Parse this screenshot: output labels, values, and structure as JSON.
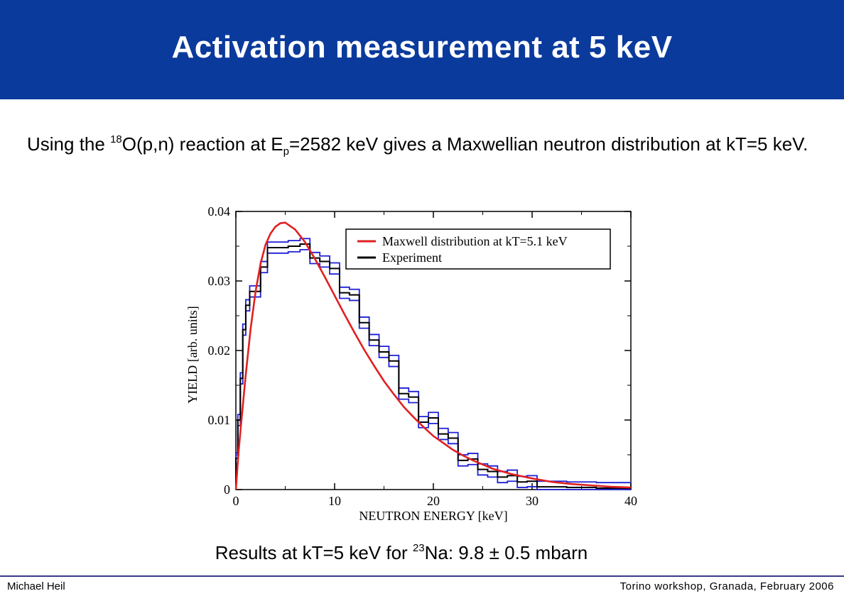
{
  "slide": {
    "title": "Activation measurement at 5 keV",
    "intro": {
      "p1": "Using the ",
      "sup1": "18",
      "p2": "O(p,n) reaction at E",
      "sub1": "p",
      "p3": "=2582 keV gives a Maxwellian neutron distribution at kT=5 keV."
    },
    "result": {
      "p1": "Results at kT=5 keV for ",
      "sup1": "23",
      "p2": "Na: 9.8 ± 0.5 mbarn"
    },
    "footer": {
      "author": "Michael Heil",
      "event": "Torino workshop, Granada,  February 2006"
    },
    "colors": {
      "header_bg": "#0a3a9c",
      "maxwell": "#e02020",
      "experiment": "#000000",
      "error_band": "#1f1fd6"
    }
  },
  "chart_data": {
    "type": "line",
    "xlabel": "NEUTRON ENERGY [keV]",
    "ylabel": "YIELD [arb. units]",
    "xlim": [
      0,
      40
    ],
    "ylim": [
      0,
      0.04
    ],
    "xticks": [
      0,
      10,
      20,
      30,
      40
    ],
    "xtick_labels": [
      "0",
      "10",
      "20",
      "30",
      "40"
    ],
    "yticks": [
      0,
      0.01,
      0.02,
      0.03,
      0.04
    ],
    "ytick_labels": [
      "0",
      "0.01",
      "0.02",
      "0.03",
      "0.04"
    ],
    "grid": false,
    "legend_position": "top-right",
    "series": [
      {
        "name": "Maxwell distribution at kT=5.1 keV",
        "style": "smooth-line",
        "x": [
          0,
          0.25,
          0.5,
          1,
          1.5,
          2,
          2.5,
          3,
          3.5,
          4,
          4.5,
          5,
          6,
          7,
          8,
          9,
          10,
          11,
          12,
          13,
          14,
          15,
          16,
          17,
          18,
          19,
          20,
          21,
          22,
          23,
          24,
          25,
          26,
          27,
          28,
          29,
          30,
          32,
          34,
          36,
          38,
          40
        ],
        "y": [
          0.0,
          0.005,
          0.009,
          0.0165,
          0.0232,
          0.0285,
          0.0325,
          0.0352,
          0.0368,
          0.0378,
          0.0383,
          0.0384,
          0.0374,
          0.0356,
          0.0332,
          0.0306,
          0.0279,
          0.0252,
          0.0226,
          0.0201,
          0.0178,
          0.0156,
          0.0137,
          0.0119,
          0.0104,
          0.009,
          0.0077,
          0.0067,
          0.0057,
          0.0049,
          0.0042,
          0.0036,
          0.003,
          0.0026,
          0.0022,
          0.0019,
          0.0016,
          0.0011,
          0.0008,
          0.0006,
          0.0004,
          0.0003
        ]
      },
      {
        "name": "Experiment",
        "style": "step",
        "bin_edges": [
          0,
          0.2,
          0.45,
          0.7,
          1.0,
          1.4,
          1.9,
          2.5,
          3.2,
          4.2,
          5.3,
          6.5,
          7.5,
          8.5,
          9.5,
          10.5,
          11.5,
          12.5,
          13.5,
          14.5,
          15.5,
          16.5,
          17.5,
          18.5,
          19.5,
          20.5,
          21.5,
          22.5,
          23.5,
          24.5,
          25.5,
          26.5,
          27.5,
          28.5,
          29.5,
          30.5,
          32,
          33.5,
          35,
          36.5,
          38,
          40
        ],
        "values": [
          0.0045,
          0.01,
          0.016,
          0.023,
          0.0265,
          0.0285,
          0.0285,
          0.032,
          0.0348,
          0.0348,
          0.035,
          0.0353,
          0.0333,
          0.0328,
          0.0318,
          0.0283,
          0.028,
          0.024,
          0.0215,
          0.0198,
          0.0185,
          0.0138,
          0.0133,
          0.0097,
          0.0103,
          0.008,
          0.0074,
          0.0042,
          0.0044,
          0.0029,
          0.0026,
          0.0018,
          0.002,
          0.0011,
          0.0012,
          0.0004,
          0.0004,
          0.0003,
          0.0003,
          0.0002,
          0.0002
        ],
        "error": 0.0008
      }
    ]
  }
}
